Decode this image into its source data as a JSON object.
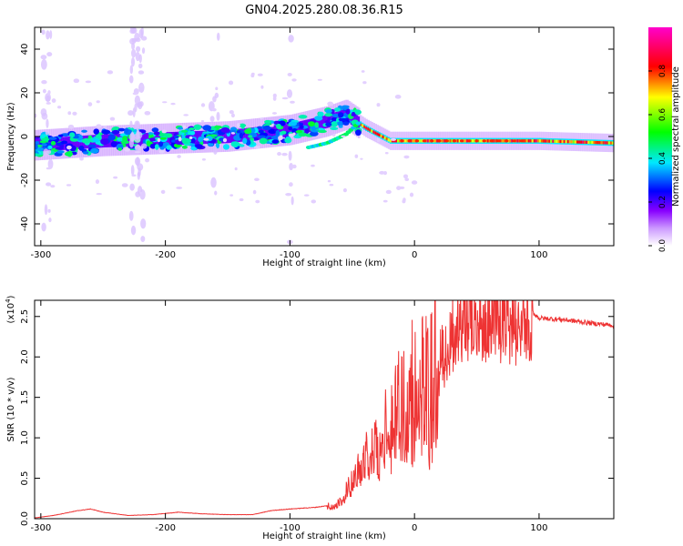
{
  "title": "GN04.2025.280.08.36.R15",
  "chart_data": [
    {
      "type": "heatmap",
      "xlabel": "Height of straight line (km)",
      "ylabel": "Frequency (Hz)",
      "xlim": [
        -305,
        160
      ],
      "ylim": [
        -50,
        50
      ],
      "xticks": [
        -300,
        -200,
        -100,
        0,
        100
      ],
      "yticks": [
        -40,
        -20,
        0,
        20,
        40
      ],
      "colorbar": {
        "label": "Normalized spectral amplitude",
        "range": [
          0,
          1
        ],
        "ticks": [
          "0.0",
          "0.2",
          "0.4",
          "0.6",
          "0.8"
        ],
        "tick_values": [
          0,
          0.2,
          0.4,
          0.6,
          0.8
        ],
        "colors": [
          "#ffffff",
          "#8800ff",
          "#0000ff",
          "#00e8ff",
          "#00ff00",
          "#ffff00",
          "#ff0000",
          "#ff00cc"
        ]
      },
      "ridge": {
        "x": [
          -305,
          -250,
          -200,
          -150,
          -100,
          -70,
          -55,
          -45,
          -40,
          -30,
          -20,
          0,
          50,
          100,
          160
        ],
        "frequency": [
          -4,
          -2,
          -1,
          0,
          3,
          7,
          10,
          6,
          4,
          1,
          -2,
          -2,
          -2,
          -2,
          -3
        ]
      },
      "secondary_ridge": {
        "x": [
          -85,
          -70,
          -55,
          -45
        ],
        "frequency": [
          -5,
          -3,
          1,
          6
        ]
      }
    },
    {
      "type": "line",
      "xlabel": "Height of straight line (km)",
      "ylabel": "SNR (10 * v/v)",
      "yscale_label": "(x10",
      "yscale_exp": "4",
      "yscale_close": ")",
      "xlim": [
        -305,
        160
      ],
      "ylim": [
        0,
        2.7
      ],
      "xticks": [
        -300,
        -200,
        -100,
        0,
        100
      ],
      "yticks": [
        "0.0",
        "0.5",
        "1.0",
        "1.5",
        "2.0",
        "2.5"
      ],
      "ytick_values": [
        0,
        0.5,
        1,
        1.5,
        2,
        2.5
      ],
      "color": "#ee3333",
      "series": [
        {
          "x": [
            -305,
            -290,
            -270,
            -260,
            -250,
            -230,
            -210,
            -190,
            -170,
            -150,
            -130,
            -115,
            -100,
            -90,
            -80,
            -70,
            -60,
            -50,
            -40,
            -30,
            -20,
            -10,
            0,
            10,
            20,
            30,
            40,
            50,
            60,
            70,
            80,
            90,
            95,
            100,
            120,
            140,
            160
          ],
          "y": [
            0.01,
            0.04,
            0.1,
            0.12,
            0.08,
            0.04,
            0.05,
            0.08,
            0.06,
            0.05,
            0.05,
            0.1,
            0.12,
            0.13,
            0.14,
            0.16,
            0.2,
            0.45,
            0.75,
            0.95,
            1.2,
            1.45,
            1.7,
            1.85,
            2.05,
            2.3,
            2.45,
            2.5,
            2.55,
            2.56,
            2.5,
            2.55,
            2.55,
            2.48,
            2.46,
            2.42,
            2.39
          ]
        }
      ]
    }
  ]
}
